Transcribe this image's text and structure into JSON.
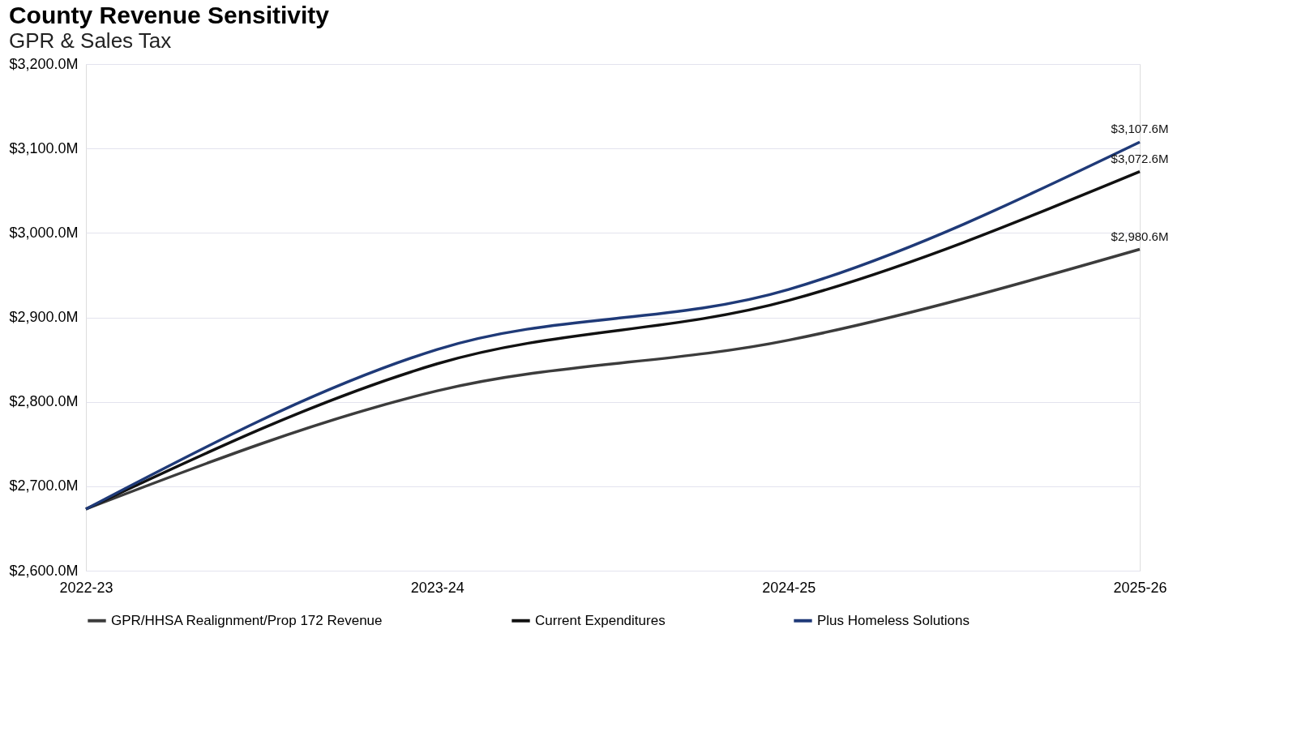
{
  "chart_data": {
    "type": "line",
    "title": "County Revenue Sensitivity",
    "subtitle": "GPR & Sales Tax",
    "categories": [
      "2022-23",
      "2023-24",
      "2024-25",
      "2025-26"
    ],
    "series": [
      {
        "name": "GPR/HHSA Realignment/Prop 172 Revenue",
        "color": "#3c3c3c",
        "values": [
          2673,
          2813,
          2873,
          2980.6
        ],
        "value_labels": [
          null,
          null,
          null,
          "$2,980.6M"
        ]
      },
      {
        "name": "Current Expenditures",
        "color": "#111111",
        "values": [
          2673,
          2845,
          2920,
          3072.6
        ],
        "value_labels": [
          null,
          null,
          null,
          "$3,072.6M"
        ]
      },
      {
        "name": "Plus Homeless Solutions",
        "color": "#1f3a78",
        "values": [
          2673,
          2862,
          2933,
          3107.6
        ],
        "value_labels": [
          null,
          null,
          null,
          "$3,107.6M"
        ]
      }
    ],
    "ylim": [
      2600,
      3200
    ],
    "yticks": [
      {
        "value": 2600,
        "label": "$2,600.0M"
      },
      {
        "value": 2700,
        "label": "$2,700.0M"
      },
      {
        "value": 2800,
        "label": "$2,800.0M"
      },
      {
        "value": 2900,
        "label": "$2,900.0M"
      },
      {
        "value": 3000,
        "label": "$3,000.0M"
      },
      {
        "value": 3100,
        "label": "$3,100.0M"
      },
      {
        "value": 3200,
        "label": "$3,200.0M"
      }
    ],
    "grid": "y",
    "legend": "bottom",
    "marker": "none",
    "line_style": "solid"
  }
}
